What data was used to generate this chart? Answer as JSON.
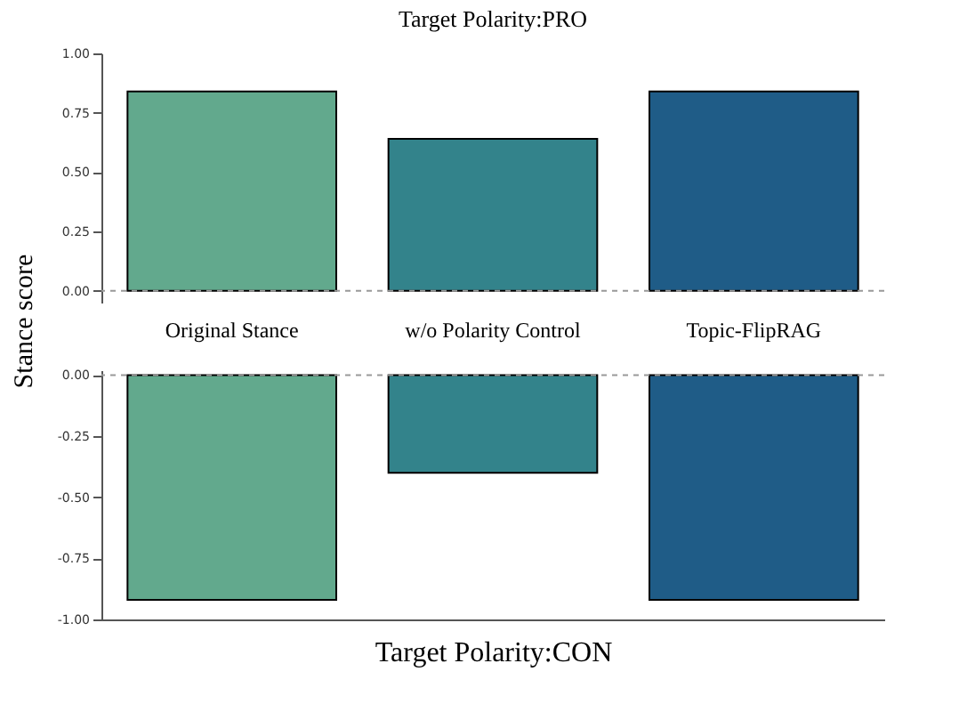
{
  "chart_data": [
    {
      "type": "bar",
      "title": "Target Polarity:PRO",
      "ylabel": "Stance score",
      "categories": [
        "Original Stance",
        "w/o Polarity Control",
        "Topic-FlipRAG"
      ],
      "values": [
        0.84,
        0.64,
        0.84
      ],
      "colors": [
        "#62a98d",
        "#33838b",
        "#1f5c87"
      ],
      "ylim": [
        -0.05,
        1
      ],
      "grid": false,
      "yticks": [
        {
          "value": 0,
          "label": "0.00"
        },
        {
          "value": 0.25,
          "label": "0.25"
        },
        {
          "value": 0.5,
          "label": "0.50"
        },
        {
          "value": 0.75,
          "label": "0.75"
        },
        {
          "value": 1,
          "label": "1.00"
        }
      ],
      "ref_lines": [
        {
          "axis": "y",
          "value": 0,
          "color": "#999999",
          "line_style": "dashed"
        }
      ]
    },
    {
      "type": "bar",
      "xlabel": "Target Polarity:CON",
      "categories": [
        null,
        null,
        null
      ],
      "values": [
        -0.92,
        -0.4,
        -0.92
      ],
      "colors": [
        "#62a98d",
        "#33838b",
        "#1f5c87"
      ],
      "ylim": [
        -1,
        0.02
      ],
      "grid": false,
      "tick_labels": "y",
      "yticks": [
        {
          "value": -1,
          "label": "-1.00"
        },
        {
          "value": -0.75,
          "label": "-0.75"
        },
        {
          "value": -0.5,
          "label": "-0.50"
        },
        {
          "value": -0.25,
          "label": "-0.25"
        },
        {
          "value": 0,
          "label": "0.00"
        }
      ],
      "ref_lines": [
        {
          "axis": "y",
          "value": 0,
          "color": "#999999",
          "line_style": "dashed"
        }
      ]
    }
  ]
}
